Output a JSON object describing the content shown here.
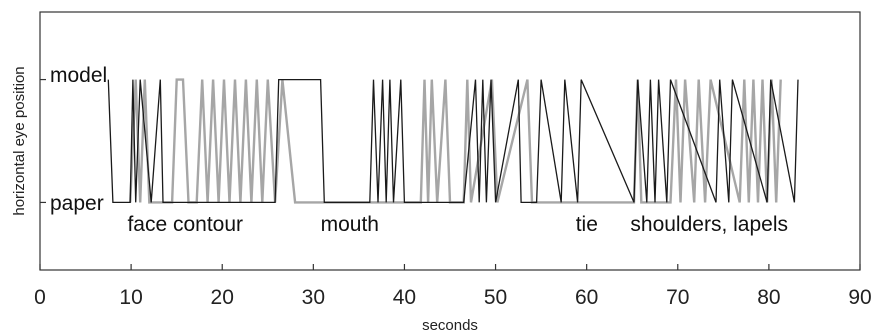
{
  "chart_data": {
    "type": "line",
    "title": "",
    "xlabel": "seconds",
    "ylabel": "horizontal eye position",
    "xlim": [
      0,
      90
    ],
    "xticks": [
      0,
      10,
      20,
      30,
      40,
      50,
      60,
      70,
      80,
      90
    ],
    "ylim": [
      -0.55,
      1.55
    ],
    "grid": false,
    "levels": {
      "model": 1,
      "paper": 0
    },
    "level_labels": {
      "model": "model",
      "paper": "paper"
    },
    "annotations": [
      {
        "text": "face contour",
        "x": 9.6
      },
      {
        "text": "mouth",
        "x": 30.8
      },
      {
        "text": "tie",
        "x": 58.8
      },
      {
        "text": "shoulders, lapels",
        "x": 64.8
      }
    ],
    "colors": {
      "black": "#1a1a1a",
      "gray": "#a6a6a6",
      "axis": "#333333"
    },
    "series": [
      {
        "color": "black",
        "x": [
          7.5,
          8.0,
          9.9,
          10.2,
          10.5,
          11.0,
          12.2,
          13.2,
          13.5,
          14.5,
          25.8,
          26.2,
          26.5,
          30.8,
          31.2,
          36.2,
          36.6,
          37.1,
          37.6,
          38.0,
          38.4,
          38.8,
          39.6,
          40.0,
          41.8,
          46.5,
          47.8,
          48.2,
          48.6,
          49.0,
          49.5,
          50.0,
          52.5,
          52.8,
          54.5,
          55.0,
          57.2,
          57.6,
          59.0,
          59.4,
          65.2,
          65.6,
          66.6,
          67.0,
          67.5,
          67.9,
          68.8,
          69.2,
          74.2,
          74.6,
          75.6,
          76.0,
          79.8,
          80.2,
          82.8,
          83.2
        ],
        "y": [
          1,
          0,
          0,
          1,
          0,
          1,
          0,
          1,
          0,
          0,
          0,
          1,
          1,
          1,
          0,
          0,
          1,
          0,
          1,
          0,
          1,
          0,
          1,
          0,
          0,
          0,
          1,
          0,
          1,
          0,
          1,
          0,
          1,
          0,
          0,
          1,
          0,
          1,
          0,
          1,
          0,
          1,
          0,
          1,
          0,
          1,
          0,
          1,
          0,
          1,
          0,
          1,
          0,
          1,
          0,
          1
        ]
      },
      {
        "color": "gray",
        "x": [
          9.9,
          10.5,
          11.0,
          11.5,
          12.0,
          12.2,
          14.5,
          15.0,
          15.7,
          16.3,
          17.2,
          17.8,
          18.4,
          19.0,
          19.6,
          20.2,
          20.8,
          21.4,
          22.0,
          22.6,
          23.2,
          23.8,
          24.4,
          25.0,
          25.8,
          26.6,
          28.0,
          31.2,
          36.2,
          41.8,
          42.2,
          42.6,
          43.0,
          43.6,
          44.5,
          45.0,
          46.5,
          46.9,
          47.3,
          49.6,
          50.2,
          53.5,
          54.0,
          57.2,
          59.4,
          65.2,
          65.6,
          66.0,
          69.2,
          69.8,
          70.3,
          70.8,
          71.8,
          72.3,
          73.0,
          73.6,
          76.8,
          77.3,
          77.8,
          78.3,
          78.8,
          79.3,
          79.8,
          80.3,
          80.8,
          81.3
        ],
        "y": [
          0,
          1,
          0,
          1,
          0,
          0,
          0,
          1,
          1,
          0,
          0,
          1,
          0,
          1,
          0,
          1,
          0,
          1,
          0,
          1,
          0,
          1,
          0,
          1,
          0,
          1,
          0,
          0,
          0,
          0,
          1,
          0,
          1,
          0,
          1,
          0,
          0,
          1,
          0,
          1,
          0,
          1,
          0,
          0,
          0,
          0,
          1,
          0,
          0,
          1,
          0,
          1,
          0,
          1,
          0,
          1,
          0,
          1,
          0,
          1,
          0,
          1,
          0,
          1,
          0,
          1
        ]
      }
    ]
  }
}
